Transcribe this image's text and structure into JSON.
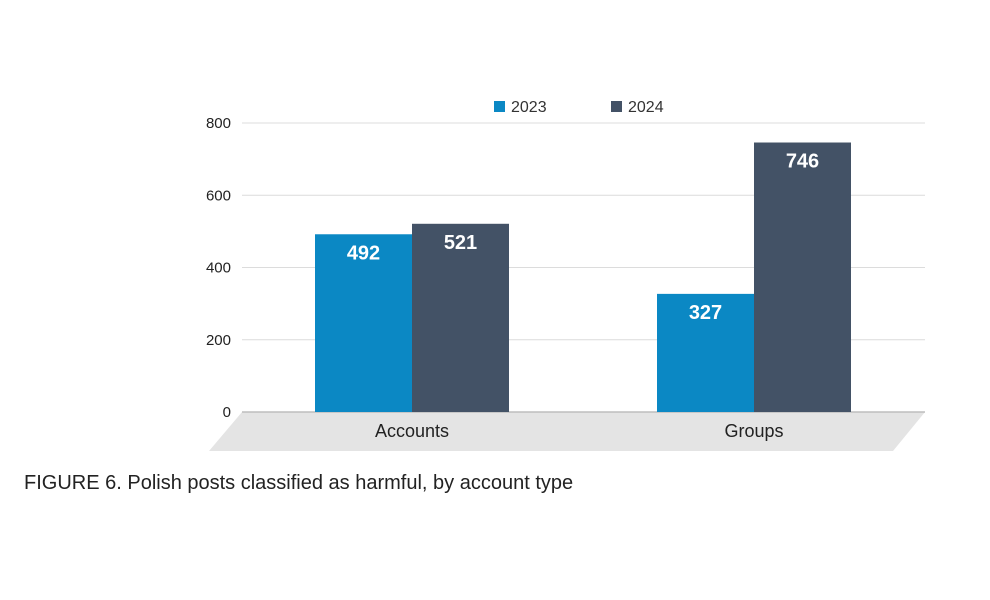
{
  "caption": "FIGURE 6. Polish posts classified as harmful, by account type",
  "chart_data": {
    "type": "bar",
    "title": "",
    "xlabel": "",
    "ylabel": "",
    "categories": [
      "Accounts",
      "Groups"
    ],
    "series": [
      {
        "name": "2023",
        "values": [
          492,
          327
        ],
        "color": "#0b88c4"
      },
      {
        "name": "2024",
        "values": [
          521,
          746
        ],
        "color": "#435266"
      }
    ],
    "ylim": [
      0,
      800
    ],
    "yticks": [
      0,
      200,
      400,
      600,
      800
    ],
    "grid": true,
    "legend": "top-center",
    "data_labels": true
  }
}
